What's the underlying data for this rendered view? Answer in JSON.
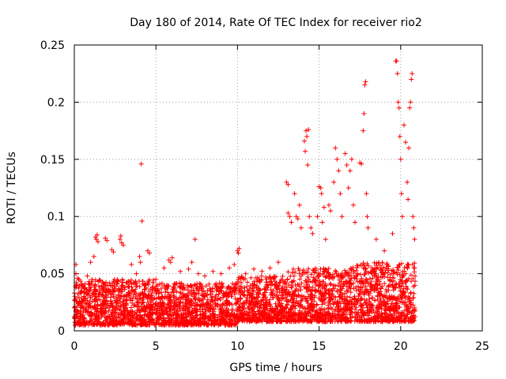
{
  "chart_data": {
    "type": "scatter",
    "title": "Day 180 of 2014, Rate Of TEC Index for receiver rio2",
    "xlabel": "GPS time / hours",
    "ylabel": "ROTI / TECUs",
    "xlim": [
      0,
      25
    ],
    "ylim": [
      0,
      0.25
    ],
    "x_ticks": [
      0,
      5,
      10,
      15,
      20,
      25
    ],
    "x_tick_labels": [
      "0",
      "5",
      "10",
      "15",
      "20",
      "25"
    ],
    "y_ticks": [
      0,
      0.05,
      0.1,
      0.15,
      0.2,
      0.25
    ],
    "y_tick_labels": [
      "0",
      "0.05",
      "0.1",
      "0.15",
      "0.2",
      "0.25"
    ],
    "grid": true,
    "marker": "+",
    "color": "#ff0000",
    "series": [
      {
        "name": "ROTI",
        "points": [
          [
            0.1,
            0.058
          ],
          [
            0.1,
            0.05
          ],
          [
            0.2,
            0.046
          ],
          [
            0.5,
            0.04
          ],
          [
            0.8,
            0.048
          ],
          [
            1.0,
            0.06
          ],
          [
            1.2,
            0.065
          ],
          [
            1.3,
            0.082
          ],
          [
            1.35,
            0.08
          ],
          [
            1.4,
            0.084
          ],
          [
            1.45,
            0.078
          ],
          [
            1.9,
            0.081
          ],
          [
            2.0,
            0.079
          ],
          [
            2.3,
            0.071
          ],
          [
            2.4,
            0.069
          ],
          [
            2.8,
            0.08
          ],
          [
            2.85,
            0.083
          ],
          [
            2.9,
            0.077
          ],
          [
            3.0,
            0.075
          ],
          [
            3.5,
            0.058
          ],
          [
            3.8,
            0.05
          ],
          [
            4.0,
            0.065
          ],
          [
            4.05,
            0.06
          ],
          [
            4.1,
            0.146
          ],
          [
            4.15,
            0.096
          ],
          [
            4.5,
            0.07
          ],
          [
            4.6,
            0.068
          ],
          [
            5.0,
            0.045
          ],
          [
            5.5,
            0.055
          ],
          [
            5.8,
            0.062
          ],
          [
            5.9,
            0.06
          ],
          [
            6.0,
            0.064
          ],
          [
            6.5,
            0.052
          ],
          [
            7.0,
            0.054
          ],
          [
            7.2,
            0.06
          ],
          [
            7.4,
            0.08
          ],
          [
            7.6,
            0.05
          ],
          [
            8.0,
            0.048
          ],
          [
            8.5,
            0.052
          ],
          [
            9.0,
            0.05
          ],
          [
            9.5,
            0.055
          ],
          [
            9.8,
            0.058
          ],
          [
            10.0,
            0.07
          ],
          [
            10.05,
            0.068
          ],
          [
            10.1,
            0.072
          ],
          [
            10.5,
            0.05
          ],
          [
            11.0,
            0.054
          ],
          [
            11.5,
            0.052
          ],
          [
            12.0,
            0.055
          ],
          [
            12.5,
            0.06
          ],
          [
            13.0,
            0.13
          ],
          [
            13.1,
            0.128
          ],
          [
            13.1,
            0.103
          ],
          [
            13.2,
            0.1
          ],
          [
            13.3,
            0.095
          ],
          [
            13.5,
            0.12
          ],
          [
            13.6,
            0.1
          ],
          [
            13.7,
            0.098
          ],
          [
            13.8,
            0.11
          ],
          [
            13.9,
            0.09
          ],
          [
            14.1,
            0.166
          ],
          [
            14.15,
            0.157
          ],
          [
            14.2,
            0.175
          ],
          [
            14.25,
            0.17
          ],
          [
            14.3,
            0.145
          ],
          [
            14.35,
            0.176
          ],
          [
            14.4,
            0.1
          ],
          [
            14.5,
            0.09
          ],
          [
            14.6,
            0.085
          ],
          [
            14.9,
            0.1
          ],
          [
            15.0,
            0.126
          ],
          [
            15.1,
            0.125
          ],
          [
            15.15,
            0.12
          ],
          [
            15.2,
            0.095
          ],
          [
            15.3,
            0.108
          ],
          [
            15.4,
            0.08
          ],
          [
            15.6,
            0.11
          ],
          [
            15.7,
            0.105
          ],
          [
            15.9,
            0.13
          ],
          [
            16.0,
            0.16
          ],
          [
            16.1,
            0.15
          ],
          [
            16.2,
            0.14
          ],
          [
            16.3,
            0.12
          ],
          [
            16.4,
            0.1
          ],
          [
            16.6,
            0.155
          ],
          [
            16.7,
            0.145
          ],
          [
            16.8,
            0.125
          ],
          [
            16.9,
            0.14
          ],
          [
            17.0,
            0.15
          ],
          [
            17.1,
            0.11
          ],
          [
            17.2,
            0.095
          ],
          [
            17.5,
            0.147
          ],
          [
            17.6,
            0.146
          ],
          [
            17.7,
            0.175
          ],
          [
            17.75,
            0.19
          ],
          [
            17.8,
            0.215
          ],
          [
            17.85,
            0.218
          ],
          [
            17.9,
            0.12
          ],
          [
            17.95,
            0.1
          ],
          [
            18.0,
            0.09
          ],
          [
            18.5,
            0.08
          ],
          [
            19.0,
            0.07
          ],
          [
            19.5,
            0.085
          ],
          [
            19.7,
            0.236
          ],
          [
            19.75,
            0.236
          ],
          [
            19.8,
            0.225
          ],
          [
            19.85,
            0.2
          ],
          [
            19.9,
            0.195
          ],
          [
            19.95,
            0.17
          ],
          [
            20.0,
            0.15
          ],
          [
            20.05,
            0.12
          ],
          [
            20.1,
            0.1
          ],
          [
            20.2,
            0.18
          ],
          [
            20.3,
            0.165
          ],
          [
            20.4,
            0.13
          ],
          [
            20.45,
            0.115
          ],
          [
            20.5,
            0.16
          ],
          [
            20.55,
            0.195
          ],
          [
            20.6,
            0.2
          ],
          [
            20.65,
            0.22
          ],
          [
            20.7,
            0.225
          ],
          [
            20.75,
            0.1
          ],
          [
            20.8,
            0.09
          ],
          [
            20.85,
            0.08
          ]
        ],
        "dense_band": [
          {
            "x_range": [
              0,
              5
            ],
            "y_range": [
              0.005,
              0.045
            ]
          },
          {
            "x_range": [
              5,
              10
            ],
            "y_range": [
              0.005,
              0.042
            ]
          },
          {
            "x_range": [
              10,
              13
            ],
            "y_range": [
              0.008,
              0.048
            ]
          },
          {
            "x_range": [
              13,
              17
            ],
            "y_range": [
              0.008,
              0.055
            ]
          },
          {
            "x_range": [
              17,
              20.9
            ],
            "y_range": [
              0.008,
              0.06
            ]
          }
        ]
      }
    ]
  }
}
